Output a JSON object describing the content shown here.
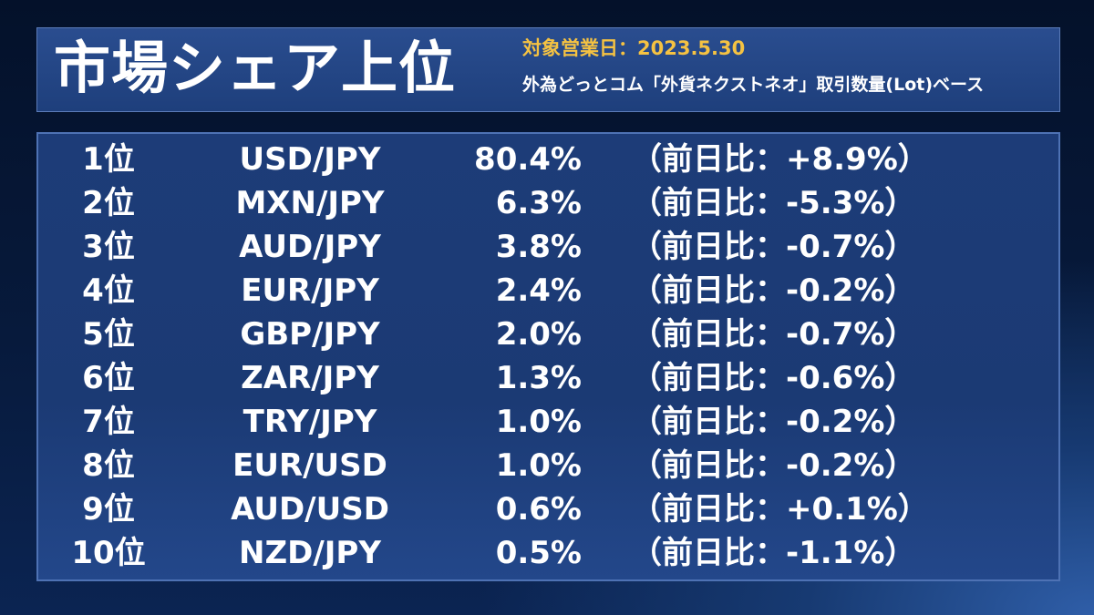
{
  "header": {
    "title": "市場シェア上位",
    "date_label": "対象営業日：2023.5.30",
    "basis_note": "外為どっとコム「外貨ネクストネオ」取引数量(Lot)ベース"
  },
  "ranking": [
    {
      "rank": "1位",
      "pair": "USD/JPY",
      "share": "80.4%",
      "change": "（前日比：+8.9%）"
    },
    {
      "rank": "2位",
      "pair": "MXN/JPY",
      "share": "6.3%",
      "change": "（前日比：-5.3%）"
    },
    {
      "rank": "3位",
      "pair": "AUD/JPY",
      "share": "3.8%",
      "change": "（前日比：-0.7%）"
    },
    {
      "rank": "4位",
      "pair": "EUR/JPY",
      "share": "2.4%",
      "change": "（前日比：-0.2%）"
    },
    {
      "rank": "5位",
      "pair": "GBP/JPY",
      "share": "2.0%",
      "change": "（前日比：-0.7%）"
    },
    {
      "rank": "6位",
      "pair": "ZAR/JPY",
      "share": "1.3%",
      "change": "（前日比：-0.6%）"
    },
    {
      "rank": "7位",
      "pair": "TRY/JPY",
      "share": "1.0%",
      "change": "（前日比：-0.2%）"
    },
    {
      "rank": "8位",
      "pair": "EUR/USD",
      "share": "1.0%",
      "change": "（前日比：-0.2%）"
    },
    {
      "rank": "9位",
      "pair": "AUD/USD",
      "share": "0.6%",
      "change": "（前日比：+0.1%）"
    },
    {
      "rank": "10位",
      "pair": "NZD/JPY",
      "share": "0.5%",
      "change": "（前日比：-1.1%）"
    }
  ],
  "colors": {
    "accent_date": "#f5c242",
    "text": "#ffffff",
    "panel": "#1d3c78",
    "panel_border": "#4e72b4"
  }
}
